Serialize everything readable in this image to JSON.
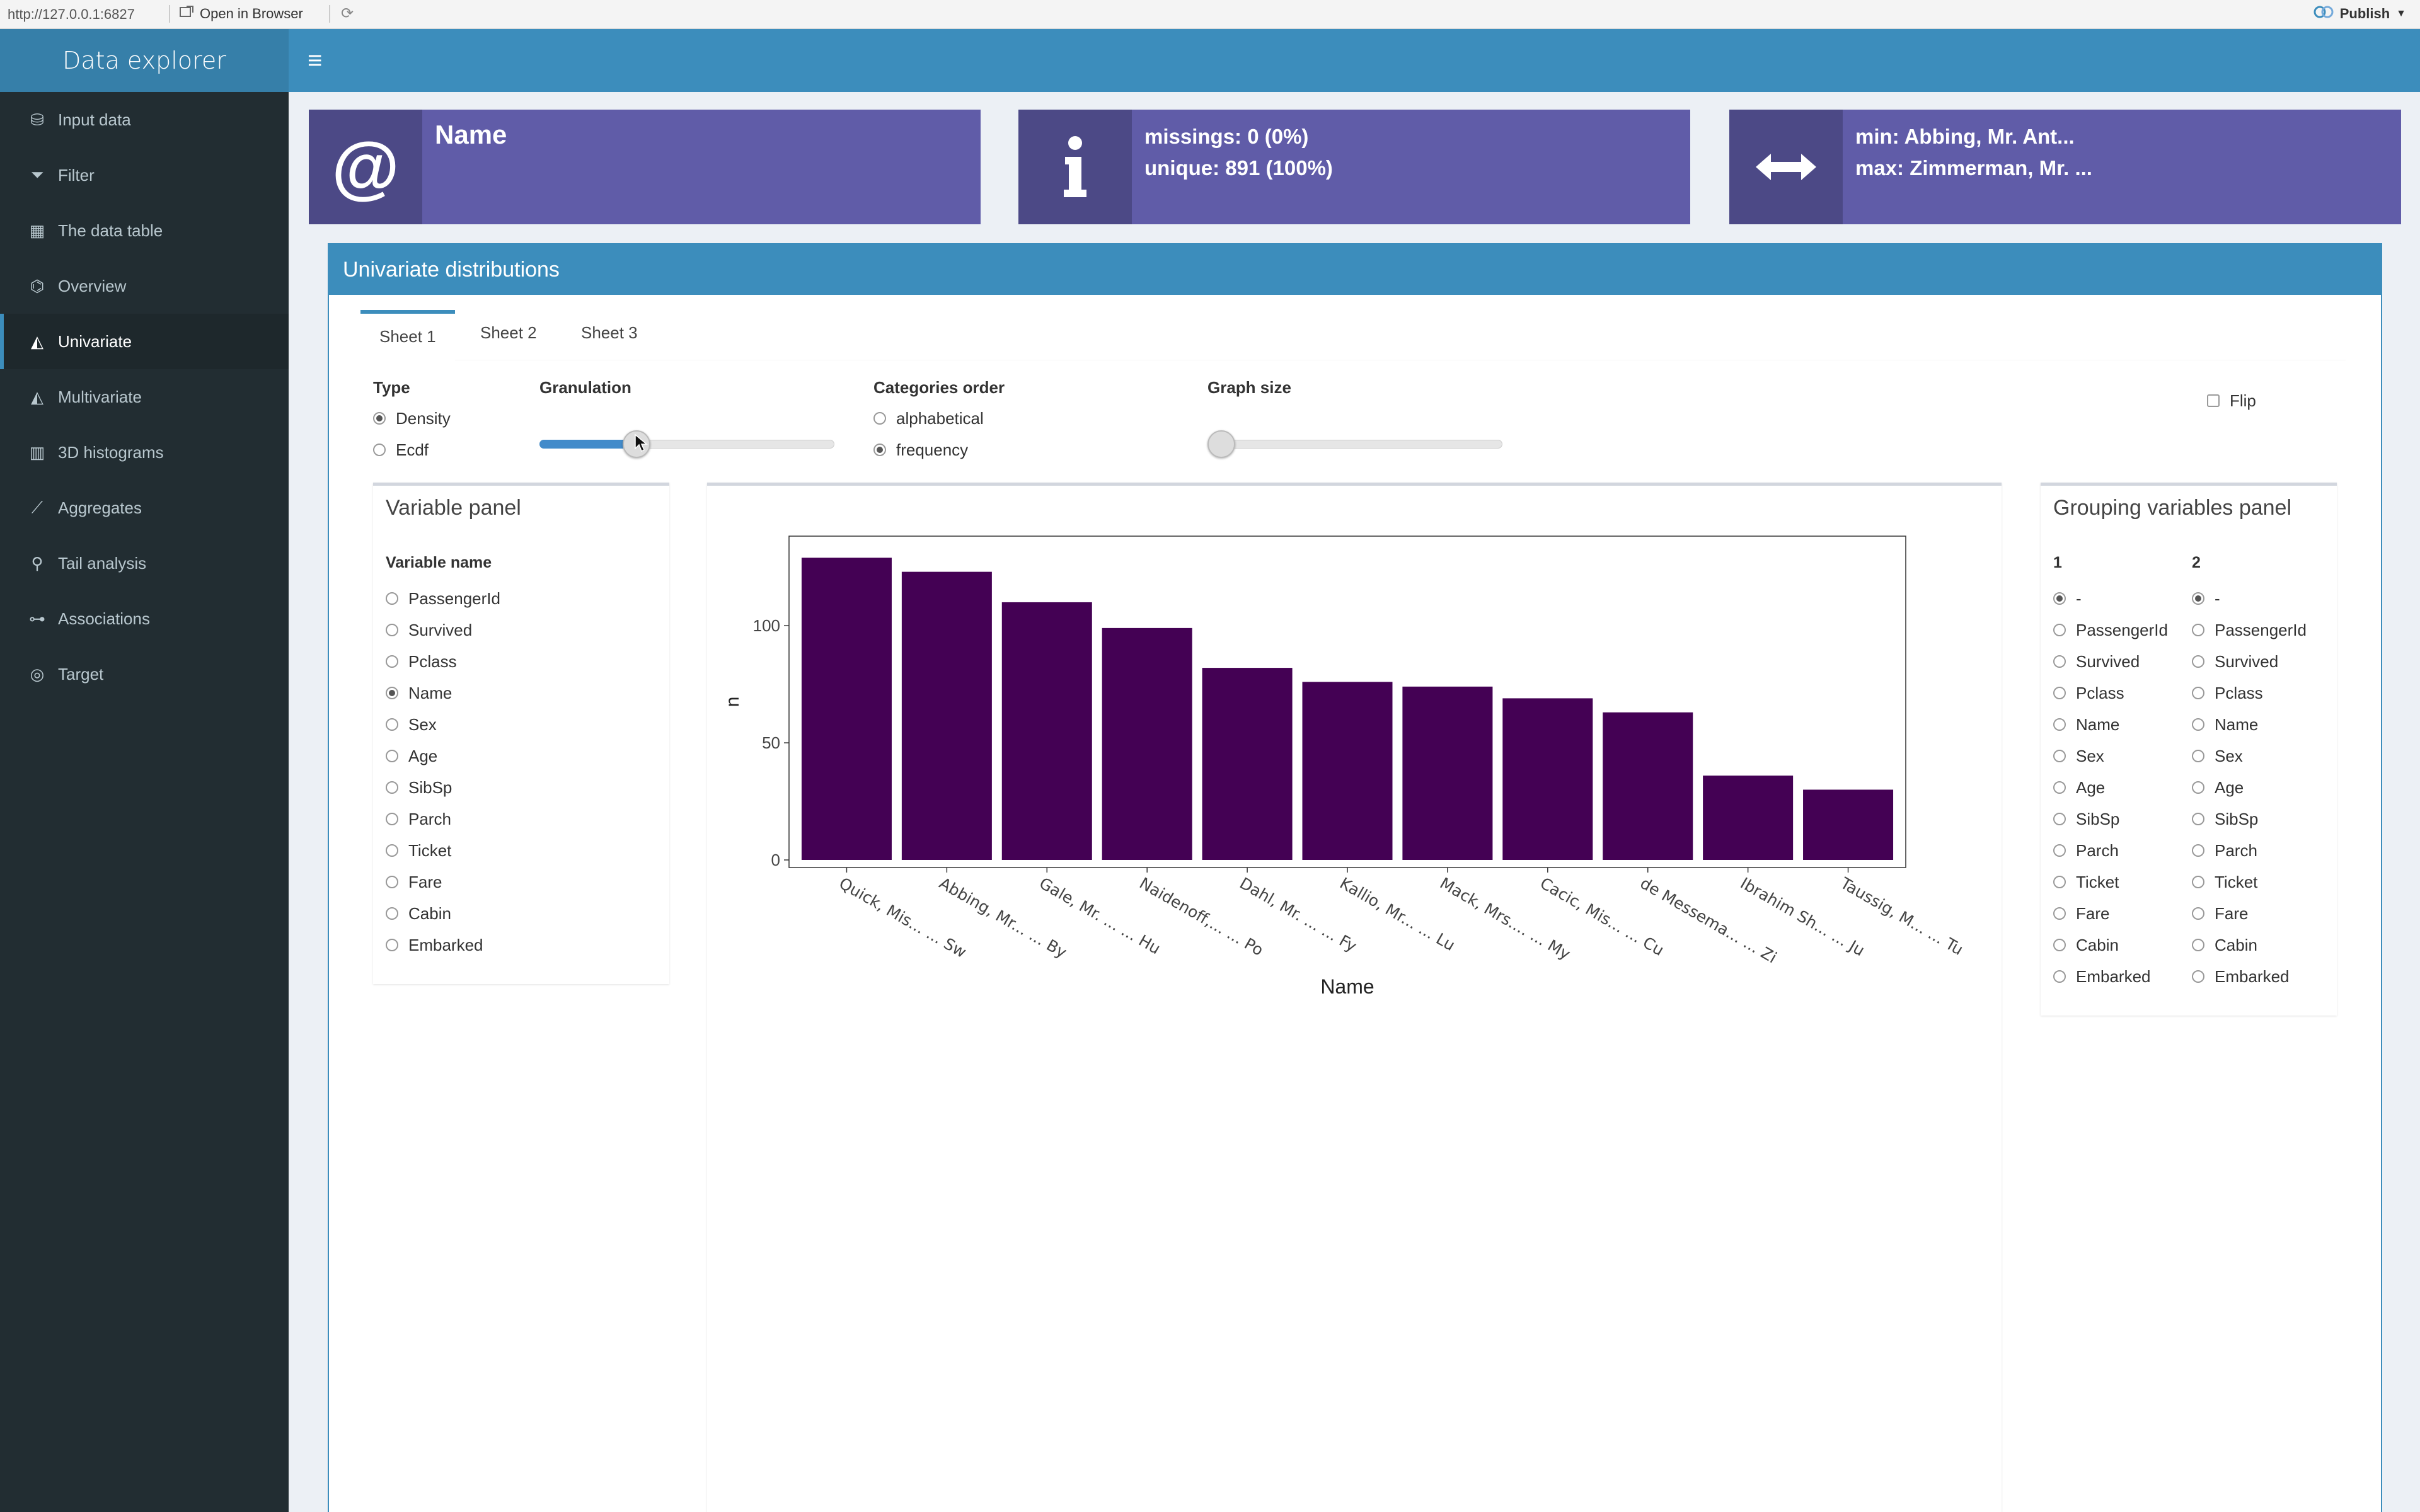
{
  "browser": {
    "url": "http://127.0.0.1:6827",
    "open_label": "Open in Browser",
    "publish_label": "Publish"
  },
  "sidebar": {
    "title": "Data explorer",
    "items": [
      {
        "label": "Input data",
        "icon": "database-icon"
      },
      {
        "label": "Filter",
        "icon": "filter-icon"
      },
      {
        "label": "The data table",
        "icon": "table-icon"
      },
      {
        "label": "Overview",
        "icon": "binoculars-icon"
      },
      {
        "label": "Univariate",
        "icon": "area-chart-icon",
        "active": true
      },
      {
        "label": "Multivariate",
        "icon": "area-chart-icon"
      },
      {
        "label": "3D histograms",
        "icon": "bar-chart-icon"
      },
      {
        "label": "Aggregates",
        "icon": "line-chart-icon"
      },
      {
        "label": "Tail analysis",
        "icon": "search-icon"
      },
      {
        "label": "Associations",
        "icon": "sitemap-icon"
      },
      {
        "label": "Target",
        "icon": "target-icon"
      }
    ]
  },
  "info": {
    "name_title": "Name",
    "missings": "missings: 0 (0%)",
    "unique": "unique: 891 (100%)",
    "min": "min: Abbing, Mr. Ant...",
    "max": "max: Zimmerman, Mr. ...",
    "colors": {
      "box": "#605ca8"
    }
  },
  "main": {
    "box_title": "Univariate distributions",
    "tabs": [
      "Sheet 1",
      "Sheet 2",
      "Sheet 3"
    ],
    "type_label": "Type",
    "type_options": [
      "Density",
      "Ecdf"
    ],
    "type_selected": "Density",
    "granulation_label": "Granulation",
    "granulation_value": 0.33,
    "order_label": "Categories order",
    "order_options": [
      "alphabetical",
      "frequency"
    ],
    "order_selected": "frequency",
    "graph_size_label": "Graph size",
    "graph_size_value": 0,
    "flip_label": "Flip"
  },
  "variable_panel": {
    "title": "Variable panel",
    "header": "Variable name",
    "items": [
      "PassengerId",
      "Survived",
      "Pclass",
      "Name",
      "Sex",
      "Age",
      "SibSp",
      "Parch",
      "Ticket",
      "Fare",
      "Cabin",
      "Embarked"
    ],
    "selected": "Name"
  },
  "grouping_panel": {
    "title": "Grouping variables panel",
    "col1_header": "1",
    "col2_header": "2",
    "items": [
      "-",
      "PassengerId",
      "Survived",
      "Pclass",
      "Name",
      "Sex",
      "Age",
      "SibSp",
      "Parch",
      "Ticket",
      "Fare",
      "Cabin",
      "Embarked"
    ],
    "selected1": "-",
    "selected2": "-"
  },
  "chart_data": {
    "type": "bar",
    "categories": [
      "Quick, Mis... ... Sw",
      "Abbing, Mr... ... By",
      "Gale, Mr. ... ... Hu",
      "Naidenoff,... ... Po",
      "Dahl, Mr. ... ... Fy",
      "Kallio, Mr... ... Lu",
      "Mack, Mrs.... ... My",
      "Cacic, Mis... ... Cu",
      "de Messema... ... Zi",
      "Ibrahim Sh... ... Ju",
      "Taussig, M... ... Tu"
    ],
    "values": [
      129,
      123,
      110,
      99,
      82,
      76,
      74,
      69,
      63,
      36,
      30
    ],
    "xlabel": "Name",
    "ylabel": "n",
    "yticks": [
      0,
      50,
      100
    ],
    "ylim": [
      0,
      135
    ],
    "bar_color": "#440154",
    "grid": false
  }
}
